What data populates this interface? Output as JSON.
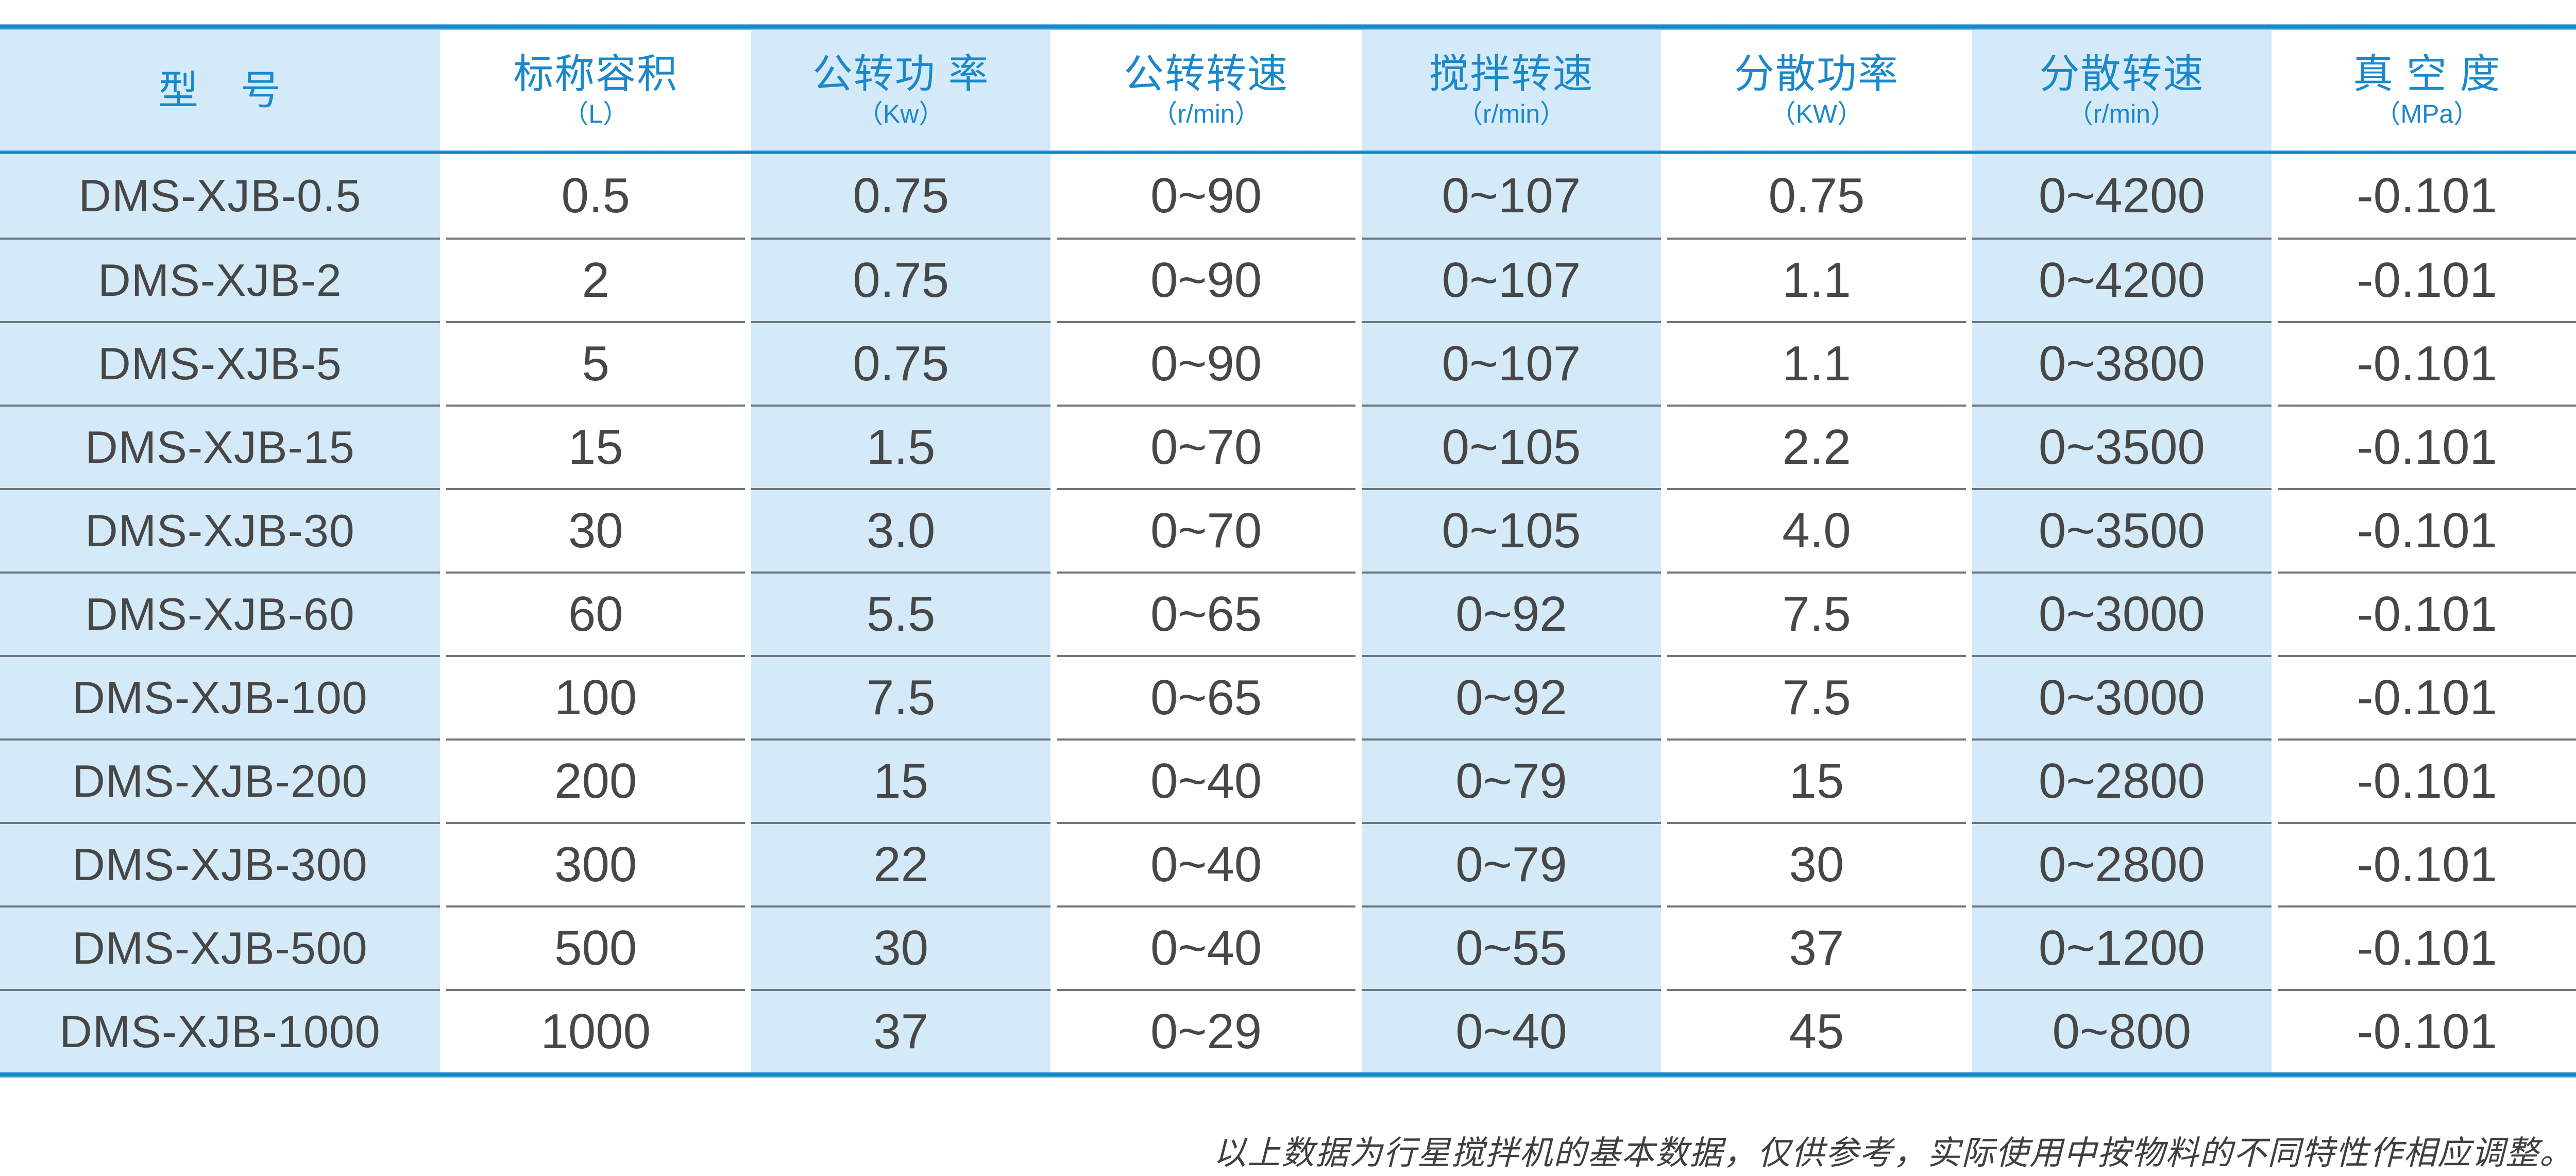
{
  "table": {
    "columns": [
      {
        "title": "型　号",
        "unit": ""
      },
      {
        "title": "标称容积",
        "unit": "（L）"
      },
      {
        "title": "公转功 率",
        "unit": "（Kw）"
      },
      {
        "title": "公转转速",
        "unit": "（r/min）"
      },
      {
        "title": "搅拌转速",
        "unit": "（r/min）"
      },
      {
        "title": "分散功率",
        "unit": "（KW）"
      },
      {
        "title": "分散转速",
        "unit": "（r/min）"
      },
      {
        "title": "真 空 度",
        "unit": "（MPa）"
      }
    ],
    "rows": [
      [
        "DMS-XJB-0.5",
        "0.5",
        "0.75",
        "0~90",
        "0~107",
        "0.75",
        "0~4200",
        "-0.101"
      ],
      [
        "DMS-XJB-2",
        "2",
        "0.75",
        "0~90",
        "0~107",
        "1.1",
        "0~4200",
        "-0.101"
      ],
      [
        "DMS-XJB-5",
        "5",
        "0.75",
        "0~90",
        "0~107",
        "1.1",
        "0~3800",
        "-0.101"
      ],
      [
        "DMS-XJB-15",
        "15",
        "1.5",
        "0~70",
        "0~105",
        "2.2",
        "0~3500",
        "-0.101"
      ],
      [
        "DMS-XJB-30",
        "30",
        "3.0",
        "0~70",
        "0~105",
        "4.0",
        "0~3500",
        "-0.101"
      ],
      [
        "DMS-XJB-60",
        "60",
        "5.5",
        "0~65",
        "0~92",
        "7.5",
        "0~3000",
        "-0.101"
      ],
      [
        "DMS-XJB-100",
        "100",
        "7.5",
        "0~65",
        "0~92",
        "7.5",
        "0~3000",
        "-0.101"
      ],
      [
        "DMS-XJB-200",
        "200",
        "15",
        "0~40",
        "0~79",
        "15",
        "0~2800",
        "-0.101"
      ],
      [
        "DMS-XJB-300",
        "300",
        "22",
        "0~40",
        "0~79",
        "30",
        "0~2800",
        "-0.101"
      ],
      [
        "DMS-XJB-500",
        "500",
        "30",
        "0~40",
        "0~55",
        "37",
        "0~1200",
        "-0.101"
      ],
      [
        "DMS-XJB-1000",
        "1000",
        "37",
        "0~29",
        "0~40",
        "45",
        "0~800",
        "-0.101"
      ]
    ]
  },
  "footer": {
    "note": "以上数据为行星搅拌机的基本数据，仅供参考，实际使用中按物料的不同特性作相应调整。"
  },
  "colors": {
    "accent_blue": "#1787c8",
    "header_text_blue": "#1b88ca",
    "cell_light_blue": "#d5eaf8",
    "body_text": "#474747",
    "row_divider_gray": "#6f787d"
  }
}
